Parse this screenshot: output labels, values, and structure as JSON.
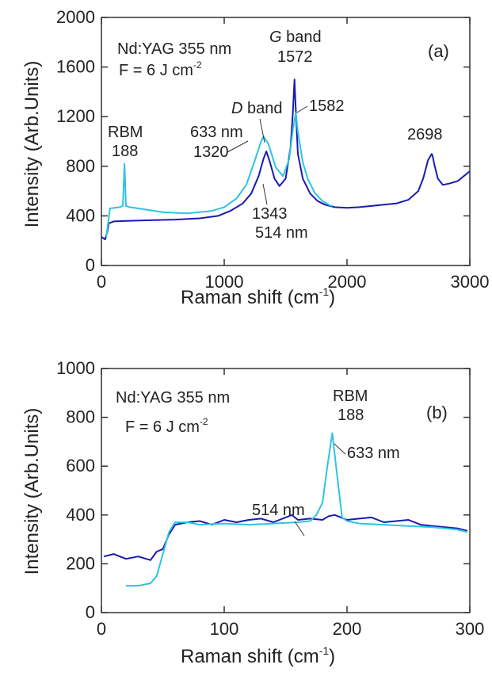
{
  "colors": {
    "s514": "#1a1ab4",
    "s633": "#2ec4e0",
    "axis": "#333333"
  },
  "chart_data": [
    {
      "type": "line",
      "panel": "(a)",
      "xlabel": "Raman shift (cm-1)",
      "xlabel_main": "Raman shift (cm",
      "xlabel_sup": "-1",
      "xlabel_end": ")",
      "ylabel": "Intensity (Arb.Units)",
      "xlim": [
        0,
        3000
      ],
      "ylim": [
        0,
        2000
      ],
      "xticks": [
        0,
        1000,
        2000,
        3000
      ],
      "yticks": [
        0,
        400,
        800,
        1200,
        1600,
        2000
      ],
      "header_line1": "Nd:YAG 355 nm",
      "header_line2_main": "F = 6 J cm",
      "header_line2_sup": "-2",
      "annotations": {
        "rbm": "RBM",
        "rbm_val": "188",
        "l633": "633 nm",
        "l633_val": "1320",
        "dband_italic": "D",
        "dband_rest": " band",
        "gband_italic": "G",
        "gband_rest": " band",
        "gband_val": "1572",
        "g2": "1582",
        "p2698": "2698",
        "p1343": "1343",
        "l514": "514 nm"
      },
      "series": [
        {
          "name": "514 nm",
          "color": "#1a1ab4",
          "x": [
            0,
            30,
            50,
            60,
            100,
            200,
            400,
            600,
            800,
            950,
            1050,
            1150,
            1220,
            1280,
            1320,
            1343,
            1370,
            1410,
            1450,
            1500,
            1540,
            1560,
            1572,
            1585,
            1600,
            1640,
            1700,
            1760,
            1820,
            1900,
            2000,
            2100,
            2200,
            2300,
            2400,
            2500,
            2580,
            2620,
            2660,
            2690,
            2698,
            2710,
            2740,
            2780,
            2830,
            2900,
            2950,
            3000
          ],
          "y": [
            230,
            210,
            280,
            340,
            355,
            360,
            365,
            370,
            380,
            400,
            440,
            500,
            580,
            720,
            860,
            920,
            840,
            700,
            640,
            700,
            950,
            1250,
            1500,
            1200,
            900,
            700,
            580,
            520,
            490,
            470,
            465,
            470,
            480,
            490,
            500,
            530,
            600,
            700,
            850,
            900,
            880,
            820,
            700,
            650,
            660,
            680,
            720,
            760
          ]
        },
        {
          "name": "633 nm",
          "color": "#2ec4e0",
          "x": [
            40,
            70,
            150,
            175,
            188,
            200,
            230,
            300,
            500,
            700,
            900,
            1000,
            1100,
            1180,
            1250,
            1300,
            1320,
            1360,
            1420,
            1480,
            1530,
            1560,
            1582,
            1600,
            1640,
            1680,
            1740,
            1800,
            1850,
            1880
          ],
          "y": [
            230,
            460,
            470,
            480,
            820,
            480,
            470,
            460,
            430,
            420,
            440,
            470,
            540,
            650,
            850,
            1000,
            1040,
            980,
            790,
            720,
            860,
            1100,
            1230,
            1080,
            830,
            700,
            580,
            520,
            490,
            480
          ]
        }
      ]
    },
    {
      "type": "line",
      "panel": "(b)",
      "xlabel": "Raman shift (cm-1)",
      "xlabel_main": "Raman shift (cm",
      "xlabel_sup": "-1",
      "xlabel_end": ")",
      "ylabel": "Intensity (Arb.Units)",
      "xlim": [
        0,
        300
      ],
      "ylim": [
        0,
        1000
      ],
      "xticks": [
        0,
        100,
        200,
        300
      ],
      "yticks": [
        0,
        200,
        400,
        600,
        800,
        1000
      ],
      "header_line1": "Nd:YAG 355 nm",
      "header_line2_main": "F = 6 J cm",
      "header_line2_sup": "-2",
      "annotations": {
        "rbm": "RBM",
        "rbm_val": "188",
        "l633": "633 nm",
        "l514": "514 nm"
      },
      "series": [
        {
          "name": "514 nm",
          "color": "#1a1ab4",
          "x": [
            2,
            10,
            20,
            30,
            40,
            45,
            50,
            55,
            60,
            70,
            80,
            90,
            100,
            110,
            120,
            130,
            140,
            150,
            155,
            160,
            170,
            180,
            185,
            190,
            200,
            210,
            220,
            230,
            240,
            250,
            260,
            270,
            280,
            290,
            298
          ],
          "y": [
            230,
            240,
            220,
            230,
            215,
            250,
            260,
            320,
            360,
            370,
            375,
            360,
            380,
            370,
            380,
            385,
            370,
            390,
            400,
            380,
            385,
            380,
            395,
            400,
            380,
            385,
            390,
            370,
            375,
            380,
            360,
            355,
            350,
            345,
            335
          ]
        },
        {
          "name": "633 nm",
          "color": "#2ec4e0",
          "x": [
            20,
            30,
            40,
            45,
            50,
            55,
            60,
            70,
            80,
            100,
            120,
            140,
            160,
            170,
            175,
            180,
            184,
            188,
            192,
            196,
            200,
            210,
            230,
            250,
            270,
            290,
            298
          ],
          "y": [
            110,
            110,
            120,
            150,
            240,
            330,
            370,
            370,
            360,
            365,
            360,
            365,
            370,
            375,
            400,
            450,
            600,
            735,
            560,
            390,
            375,
            365,
            360,
            355,
            350,
            340,
            330
          ]
        }
      ]
    }
  ]
}
